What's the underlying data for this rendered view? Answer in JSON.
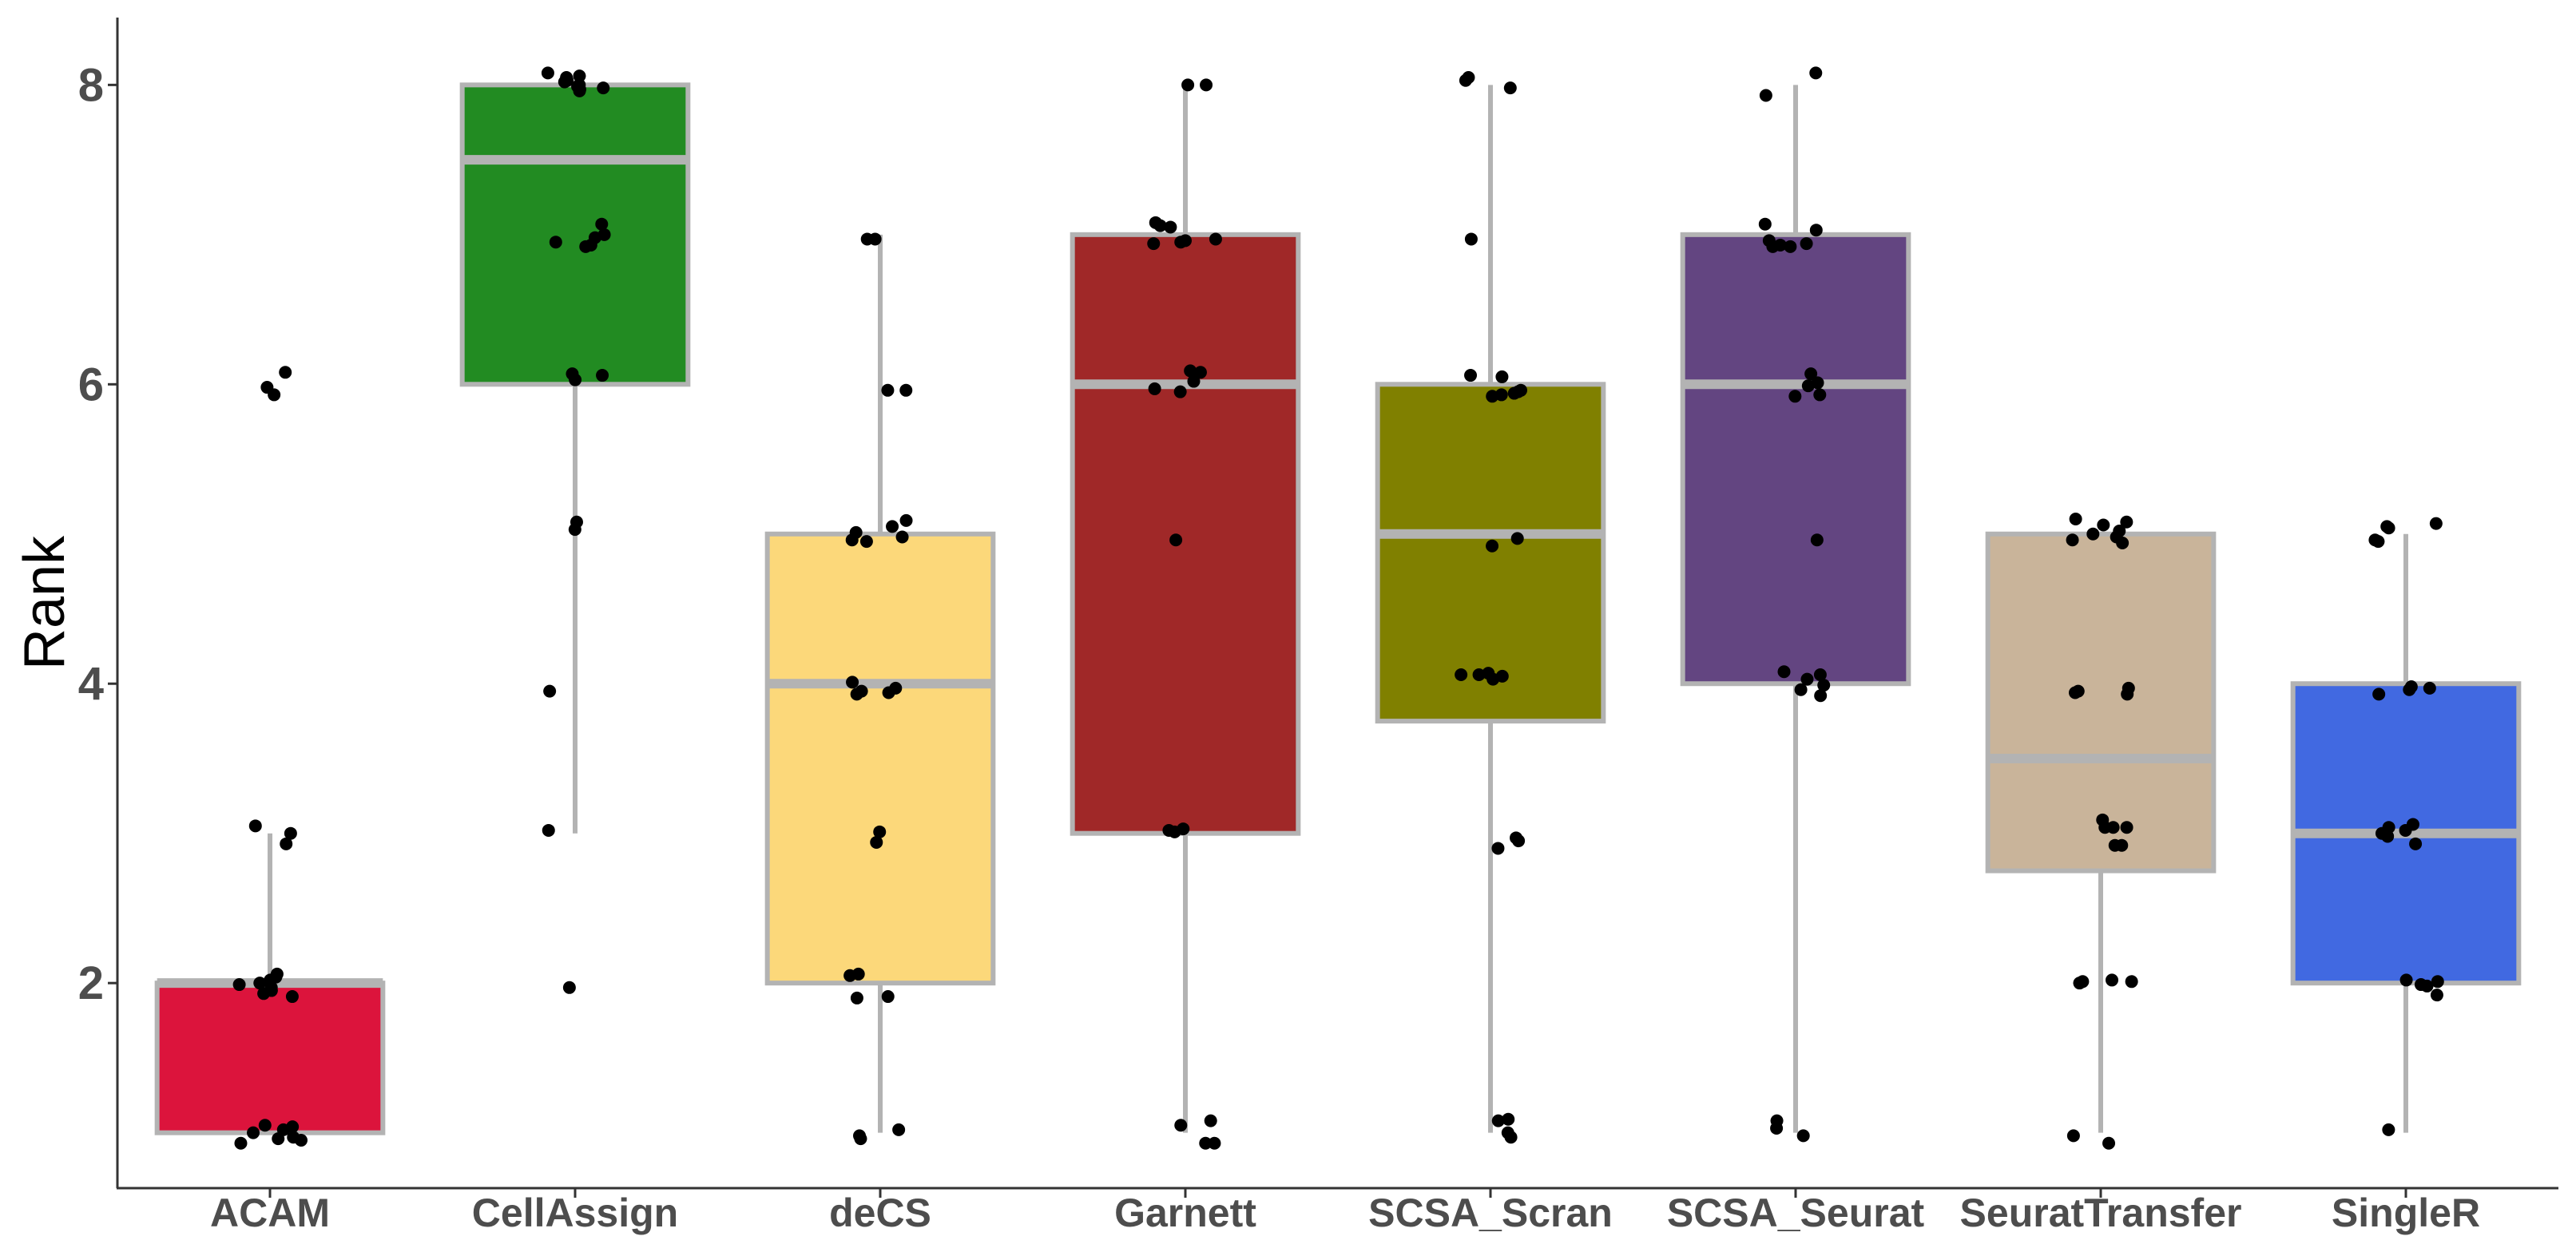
{
  "chart_data": {
    "type": "box",
    "title": "",
    "xlabel": "",
    "ylabel": "Rank",
    "ylim": [
      0.63,
      8.45
    ],
    "yticks": [
      2,
      4,
      6,
      8
    ],
    "grid": false,
    "legend": "none",
    "categories": [
      "ACAM",
      "CellAssign",
      "deCS",
      "Garnett",
      "SCSA_Scran",
      "SCSA_Seurat",
      "SeuratTransfer",
      "SingleR"
    ],
    "colors": [
      "#DC143C",
      "#228B22",
      "#FCD87A",
      "#A02828",
      "#808000",
      "#634581",
      "#C9B49A",
      "#4169E1"
    ],
    "box_stats": [
      {
        "q1": 1,
        "median": 2,
        "q3": 2,
        "whisker_low": 1,
        "whisker_high": 3
      },
      {
        "q1": 6,
        "median": 7.5,
        "q3": 8,
        "whisker_low": 3,
        "whisker_high": 8
      },
      {
        "q1": 2,
        "median": 4,
        "q3": 5,
        "whisker_low": 1,
        "whisker_high": 7
      },
      {
        "q1": 3,
        "median": 6,
        "q3": 7,
        "whisker_low": 1,
        "whisker_high": 8
      },
      {
        "q1": 3.75,
        "median": 5,
        "q3": 6,
        "whisker_low": 1,
        "whisker_high": 8
      },
      {
        "q1": 4,
        "median": 6,
        "q3": 7,
        "whisker_low": 1,
        "whisker_high": 8
      },
      {
        "q1": 2.75,
        "median": 3.5,
        "q3": 5,
        "whisker_low": 1,
        "whisker_high": 5
      },
      {
        "q1": 2,
        "median": 3,
        "q3": 4,
        "whisker_low": 1,
        "whisker_high": 5
      }
    ],
    "points": [
      [
        6.08,
        5.93,
        5.98,
        3.05,
        3.0,
        2.93,
        2.02,
        1.95,
        1.97,
        1.99,
        2.04,
        2.06,
        1.93,
        1.91,
        2.0,
        1.05,
        1.0,
        0.95,
        1.02,
        0.97,
        1.04,
        0.93,
        0.96
      ],
      [
        8.08,
        8.05,
        8.02,
        7.98,
        7.99,
        7.96,
        8.0,
        7.97,
        8.06,
        8.03,
        7.07,
        6.98,
        6.95,
        6.93,
        6.92,
        7.0,
        6.07,
        6.06,
        6.03,
        5.08,
        5.03,
        3.95,
        3.02,
        1.97
      ],
      [
        6.97,
        6.97,
        5.96,
        5.96,
        5.09,
        5.05,
        5.01,
        4.98,
        4.96,
        4.95,
        3.97,
        3.94,
        3.93,
        4.01,
        3.95,
        3.01,
        2.94,
        2.06,
        2.05,
        1.9,
        1.91,
        1.02,
        0.96,
        0.98
      ],
      [
        8.0,
        8.0,
        7.08,
        7.06,
        7.05,
        6.97,
        6.95,
        6.94,
        6.96,
        6.09,
        6.08,
        6.02,
        5.97,
        5.95,
        4.96,
        3.02,
        3.03,
        3.01,
        1.08,
        0.93,
        1.05,
        0.93
      ],
      [
        8.05,
        8.03,
        7.98,
        6.97,
        6.06,
        6.05,
        5.95,
        5.93,
        5.96,
        5.94,
        5.92,
        4.97,
        4.92,
        4.06,
        4.05,
        4.03,
        4.07,
        4.06,
        2.97,
        2.95,
        2.9,
        1.09,
        1.08,
        1.0,
        0.97
      ],
      [
        8.08,
        7.93,
        7.07,
        7.03,
        6.96,
        6.93,
        6.92,
        6.94,
        6.92,
        6.07,
        6.01,
        5.99,
        5.93,
        5.92,
        4.96,
        4.08,
        4.06,
        4.03,
        3.99,
        3.96,
        3.92,
        1.08,
        1.03,
        0.98
      ],
      [
        5.1,
        5.08,
        5.06,
        5.02,
        5.0,
        4.98,
        4.96,
        4.94,
        3.97,
        3.95,
        3.93,
        3.94,
        3.09,
        3.04,
        3.04,
        3.04,
        2.92,
        2.92,
        2.01,
        2.01,
        2.02,
        2.0,
        0.98,
        0.93
      ],
      [
        5.07,
        5.05,
        5.04,
        4.96,
        4.95,
        3.98,
        3.97,
        3.96,
        3.93,
        3.06,
        3.04,
        3.02,
        3.0,
        2.98,
        2.93,
        2.02,
        2.01,
        1.99,
        1.98,
        1.92,
        1.02
      ]
    ]
  }
}
